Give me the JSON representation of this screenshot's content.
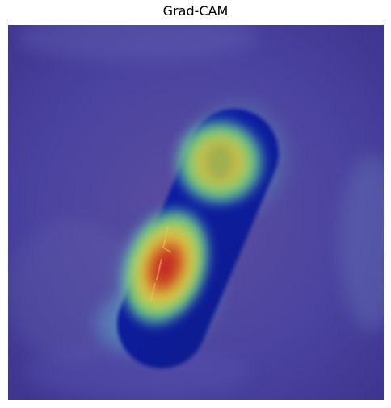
{
  "figure": {
    "title": "Grad-CAM",
    "overlay_colormap": "jet",
    "colors": {
      "background_overlay": "#4b43a0",
      "capsule_body": "#0a1a9e",
      "hot_red": "#c81e1e",
      "hot_yellow": "#e8d23a",
      "warm_green": "#6fd27a",
      "cool_cyan": "#5fd3d6"
    },
    "image_description_label": "grad-cam-heatmap-overlay"
  }
}
